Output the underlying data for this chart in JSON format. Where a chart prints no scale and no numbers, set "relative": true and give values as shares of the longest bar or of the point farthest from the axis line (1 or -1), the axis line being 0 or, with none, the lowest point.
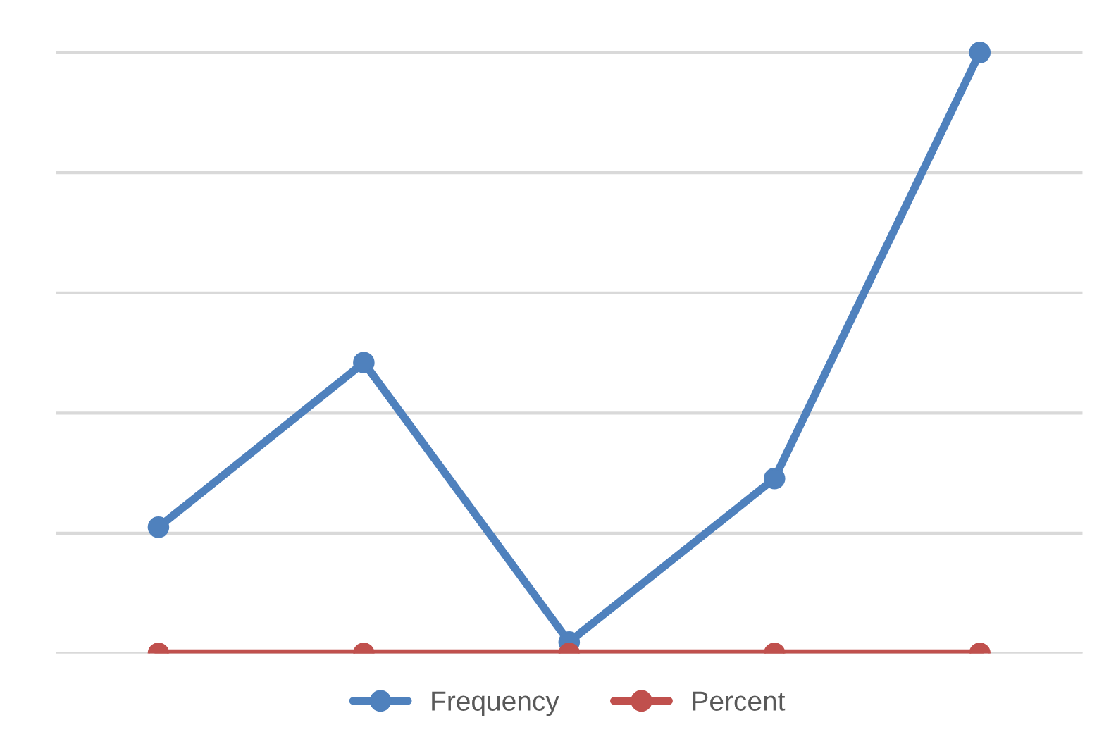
{
  "chart_data": {
    "type": "line",
    "relative": true,
    "categories": [
      null,
      null,
      null,
      null,
      null
    ],
    "series": [
      {
        "name": "Frequency",
        "color": "#4f81bd",
        "values": [
          0.21,
          0.484,
          0.019,
          0.291,
          1.0
        ]
      },
      {
        "name": "Percent",
        "color": "#c0504d",
        "values": [
          0,
          0,
          0,
          0,
          0
        ]
      }
    ],
    "marker": "circle",
    "grid": "y",
    "legend": "bottom",
    "line_style": "solid"
  }
}
